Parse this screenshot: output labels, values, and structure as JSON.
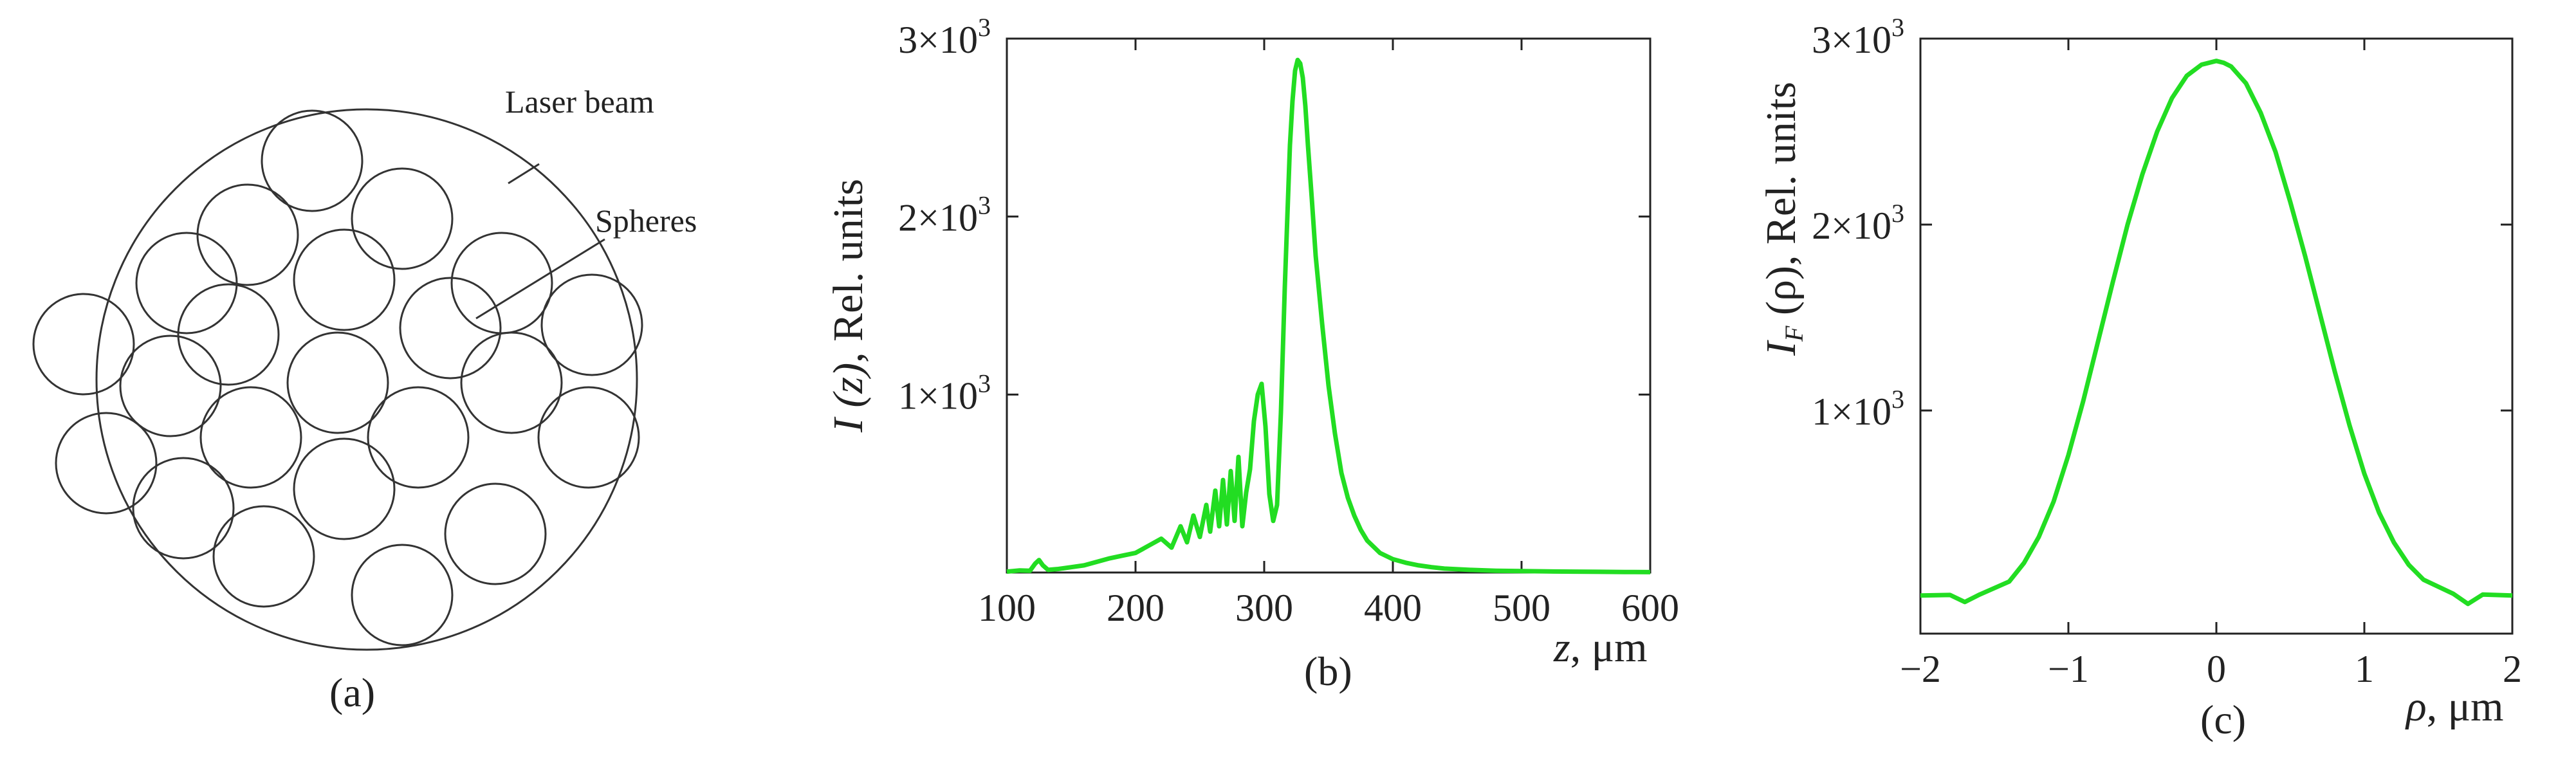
{
  "panel_a": {
    "caption": "(a)",
    "labels": {
      "laser_beam": "Laser beam",
      "spheres": "Spheres"
    }
  },
  "chart_data": [
    {
      "type": "line",
      "panel": "(b)",
      "title": "",
      "xlabel_var": "z",
      "xlabel_unit": ", μm",
      "ylabel_var": "I (z)",
      "ylabel_rest": ", Rel. units",
      "xlim": [
        100,
        600
      ],
      "ylim": [
        0,
        3000
      ],
      "xticks": [
        "100",
        "200",
        "300",
        "400",
        "500",
        "600"
      ],
      "yticks": [
        {
          "mant": "1×10",
          "exp": "3",
          "value": 1000
        },
        {
          "mant": "2×10",
          "exp": "3",
          "value": 2000
        },
        {
          "mant": "3×10",
          "exp": "3",
          "value": 3000
        }
      ],
      "color": "#22dd22",
      "series": [
        {
          "x": [
            100,
            110,
            118,
            122,
            125,
            128,
            132,
            140,
            150,
            160,
            170,
            180,
            190,
            200,
            210,
            220,
            228,
            235,
            240,
            245,
            250,
            255,
            258,
            262,
            265,
            268,
            271,
            274,
            277,
            280,
            283,
            286,
            289,
            292,
            295,
            298,
            301,
            304,
            307,
            310,
            313,
            316,
            318,
            320,
            322,
            324,
            326,
            328,
            330,
            332,
            334,
            337,
            340,
            345,
            350,
            355,
            360,
            365,
            370,
            375,
            380,
            390,
            400,
            410,
            420,
            430,
            440,
            460,
            480,
            500,
            520,
            540,
            560,
            580,
            600
          ],
          "y": [
            5,
            12,
            10,
            50,
            70,
            40,
            15,
            20,
            30,
            40,
            60,
            80,
            95,
            110,
            150,
            190,
            140,
            260,
            170,
            320,
            200,
            380,
            230,
            460,
            260,
            520,
            270,
            570,
            290,
            650,
            260,
            450,
            580,
            850,
            1000,
            1060,
            820,
            440,
            290,
            380,
            900,
            1600,
            2000,
            2400,
            2650,
            2820,
            2880,
            2860,
            2780,
            2620,
            2400,
            2100,
            1780,
            1400,
            1050,
            780,
            560,
            420,
            320,
            240,
            180,
            110,
            75,
            55,
            40,
            30,
            22,
            15,
            10,
            8,
            6,
            5,
            4,
            3,
            2
          ]
        }
      ]
    },
    {
      "type": "line",
      "panel": "(c)",
      "title": "",
      "xlabel_var": "ρ",
      "xlabel_unit": ", μm",
      "ylabel_var": "I",
      "ylabel_sub": "F",
      "ylabel_arg": " (ρ)",
      "ylabel_rest": ", Rel. units",
      "xlim": [
        -2,
        2
      ],
      "ylim": [
        -200,
        3000
      ],
      "xticks": [
        "−2",
        "−1",
        "0",
        "1",
        "2"
      ],
      "yticks": [
        {
          "mant": "1×10",
          "exp": "3",
          "value": 1000
        },
        {
          "mant": "2×10",
          "exp": "3",
          "value": 2000
        },
        {
          "mant": "3×10",
          "exp": "3",
          "value": 3000
        }
      ],
      "color": "#22dd22",
      "series": [
        {
          "x": [
            -2.0,
            -1.8,
            -1.7,
            -1.6,
            -1.4,
            -1.3,
            -1.2,
            -1.1,
            -1.0,
            -0.9,
            -0.8,
            -0.7,
            -0.6,
            -0.5,
            -0.4,
            -0.3,
            -0.2,
            -0.1,
            0.0,
            0.05,
            0.1,
            0.2,
            0.3,
            0.4,
            0.5,
            0.6,
            0.7,
            0.8,
            0.9,
            1.0,
            1.1,
            1.2,
            1.3,
            1.4,
            1.6,
            1.7,
            1.8,
            2.0
          ],
          "y": [
            5,
            8,
            -30,
            10,
            80,
            180,
            320,
            510,
            760,
            1050,
            1370,
            1690,
            2000,
            2270,
            2500,
            2680,
            2800,
            2860,
            2880,
            2870,
            2850,
            2760,
            2600,
            2390,
            2120,
            1830,
            1520,
            1210,
            920,
            660,
            450,
            290,
            170,
            90,
            15,
            -40,
            10,
            5
          ]
        }
      ]
    }
  ]
}
